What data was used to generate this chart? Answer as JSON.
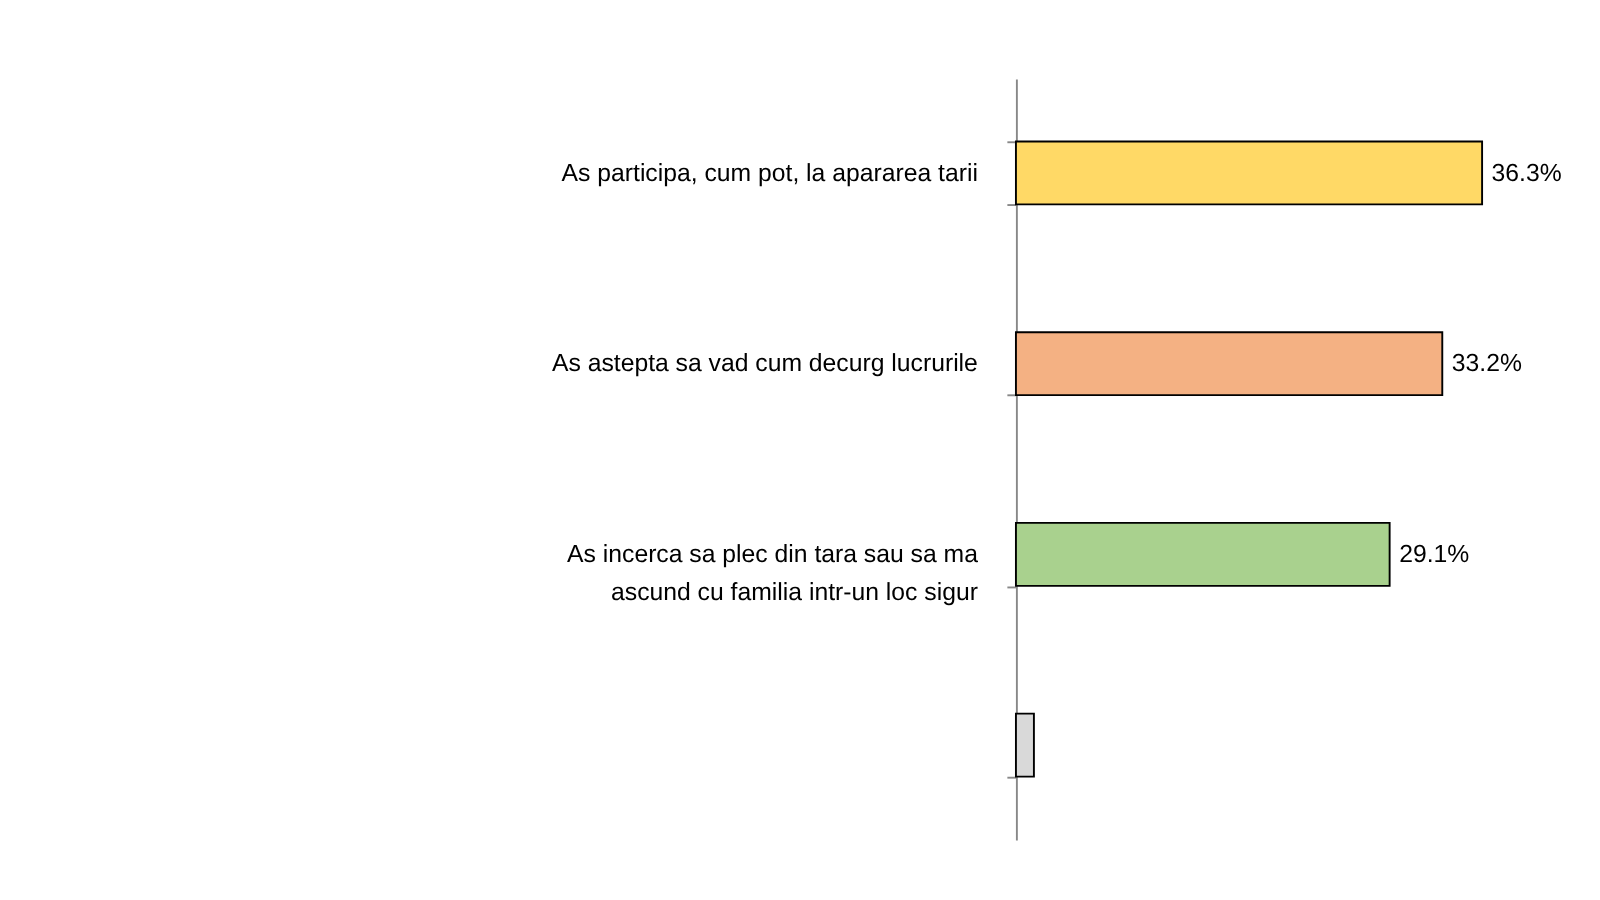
{
  "chart_data": {
    "type": "bar",
    "orientation": "horizontal",
    "categories": [
      "As participa, cum pot, la apararea tarii",
      "As astepta sa vad cum decurg lucrurile",
      "As incerca sa plec din tara sau sa ma ascund cu familia intr-un loc sigur",
      null
    ],
    "values": [
      36.3,
      33.2,
      29.1,
      1.4
    ],
    "colors": [
      "#ffd966",
      "#f4b183",
      "#a9d18e",
      "#d9d9d9"
    ],
    "value_labels": [
      "36.3%",
      "33.2%",
      "29.1%",
      null
    ],
    "grid": false,
    "tick_labels": "y"
  }
}
